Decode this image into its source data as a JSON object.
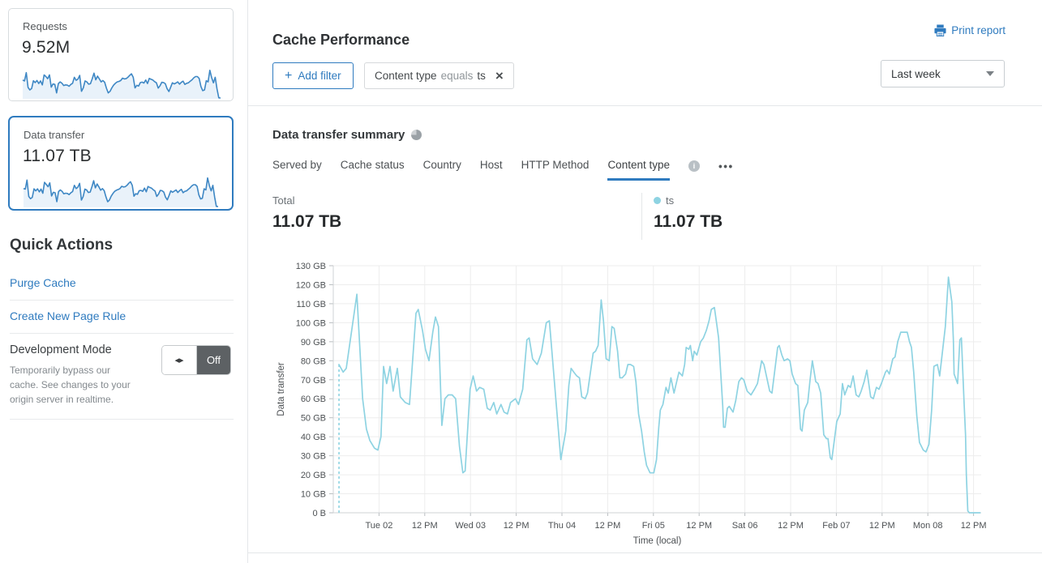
{
  "colors": {
    "link_blue": "#2f7bbf",
    "selected_card_border": "#2f7bbf",
    "tab_underline": "#2f7bbf",
    "sparkline_stroke": "#3e87c4",
    "sparkline_fill": "#e9f2fa",
    "chart_line": "#8ed3e2",
    "toggle_off_bg": "#5d6164"
  },
  "sidebar": {
    "cards": [
      {
        "label": "Requests",
        "value": "9.52M",
        "selected": false,
        "sparkline": [
          78,
          74,
          110,
          46,
          35,
          41,
          75,
          67,
          76,
          63,
          74,
          57,
          100,
          93,
          84,
          100,
          47,
          61,
          59,
          22,
          63,
          70,
          64,
          54,
          57,
          56,
          51,
          59,
          64,
          90,
          77,
          82,
          98,
          29,
          44,
          74,
          70,
          60,
          62,
          83,
          108,
          79,
          95,
          83,
          70,
          76,
          68,
          42,
          22,
          29,
          44,
          56,
          64,
          70,
          72,
          76,
          86,
          83,
          84,
          90,
          98,
          105,
          90,
          44,
          55,
          52,
          67,
          69,
          65,
          78,
          63,
          85,
          81,
          78,
          71,
          66,
          43,
          53,
          68,
          67,
          62,
          40,
          28,
          47,
          66,
          61,
          65,
          70,
          60,
          68,
          73,
          59,
          64,
          66,
          73,
          79,
          88,
          93,
          93,
          85,
          50,
          32,
          35,
          75,
          70,
          120,
          89,
          66,
          90,
          40,
          1,
          0
        ]
      },
      {
        "label": "Data transfer",
        "value": "11.07 TB",
        "selected": true,
        "sparkline": [
          78,
          76,
          115,
          44,
          34,
          40,
          77,
          68,
          77,
          64,
          76,
          58,
          105,
          96,
          86,
          103,
          46,
          62,
          60,
          21,
          65,
          72,
          66,
          55,
          58,
          57,
          52,
          60,
          65,
          92,
          78,
          84,
          101,
          28,
          43,
          76,
          72,
          61,
          63,
          85,
          112,
          81,
          98,
          85,
          71,
          78,
          69,
          43,
          21,
          28,
          45,
          57,
          66,
          71,
          74,
          78,
          88,
          85,
          86,
          92,
          101,
          108,
          92,
          45,
          56,
          53,
          69,
          70,
          66,
          80,
          64,
          87,
          83,
          80,
          73,
          67,
          44,
          54,
          70,
          69,
          63,
          41,
          29,
          48,
          68,
          62,
          67,
          72,
          61,
          69,
          75,
          60,
          66,
          68,
          75,
          81,
          90,
          95,
          95,
          87,
          51,
          33,
          36,
          77,
          72,
          124,
          91,
          68,
          92,
          41,
          1,
          0
        ]
      }
    ],
    "quick_actions": {
      "title": "Quick Actions",
      "links": [
        "Purge Cache",
        "Create New Page Rule"
      ],
      "dev_mode": {
        "title": "Development Mode",
        "description": "Temporarily bypass our cache. See changes to your origin server in realtime.",
        "toggle_icon": "◂▸",
        "toggle_state": "Off"
      }
    }
  },
  "header": {
    "title": "Cache Performance",
    "print_label": "Print report"
  },
  "filters": {
    "add_label": "Add filter",
    "add_plus": "+",
    "chip": {
      "field": "Content type",
      "operator": "equals",
      "value": "ts",
      "close": "×"
    },
    "range_label": "Last week"
  },
  "summary": {
    "title": "Data transfer summary",
    "tabs": [
      {
        "label": "Served by",
        "active": false
      },
      {
        "label": "Cache status",
        "active": false
      },
      {
        "label": "Country",
        "active": false
      },
      {
        "label": "Host",
        "active": false
      },
      {
        "label": "HTTP Method",
        "active": false
      },
      {
        "label": "Content type",
        "active": true,
        "info": true
      }
    ],
    "more_label": "•••",
    "info_glyph": "i",
    "total_label": "Total",
    "total_value": "11.07 TB",
    "series_label": "ts",
    "series_value": "11.07 TB"
  },
  "chart_data": {
    "type": "line",
    "title": "Data transfer summary — ts",
    "xlabel": "Time (local)",
    "ylabel": "Data transfer",
    "grid": true,
    "legend_position": "above-right",
    "y_unit": "GB",
    "y_max_gb": 130,
    "y_tick_labels": [
      "0 B",
      "10 GB",
      "20 GB",
      "30 GB",
      "40 GB",
      "50 GB",
      "60 GB",
      "70 GB",
      "80 GB",
      "90 GB",
      "100 GB",
      "110 GB",
      "120 GB",
      "130 GB"
    ],
    "x_range_hours": [
      0,
      170
    ],
    "x_tick_hours": [
      12,
      24,
      36,
      48,
      60,
      72,
      84,
      96,
      108,
      120,
      132,
      144,
      156,
      168
    ],
    "x_tick_labels": [
      "Tue 02",
      "12 PM",
      "Wed 03",
      "12 PM",
      "Thu 04",
      "12 PM",
      "Fri 05",
      "12 PM",
      "Sat 06",
      "12 PM",
      "Feb 07",
      "12 PM",
      "Mon 08",
      "12 PM"
    ],
    "dashed_start": {
      "t": 1.5,
      "from_gb": 0,
      "to_gb": 78
    },
    "series": [
      {
        "name": "ts",
        "color": "#8ed3e2",
        "points": [
          [
            1.5,
            78
          ],
          [
            2.6,
            74
          ],
          [
            3.4,
            76
          ],
          [
            6.2,
            115
          ],
          [
            7.7,
            60
          ],
          [
            8.7,
            44
          ],
          [
            9.6,
            38
          ],
          [
            10.8,
            34
          ],
          [
            11.7,
            33
          ],
          [
            12.5,
            40
          ],
          [
            13.2,
            77
          ],
          [
            14,
            68
          ],
          [
            14.9,
            77
          ],
          [
            15.7,
            64
          ],
          [
            16.8,
            76
          ],
          [
            17.6,
            61
          ],
          [
            18.9,
            58
          ],
          [
            20,
            57
          ],
          [
            21.7,
            105
          ],
          [
            22.3,
            107
          ],
          [
            23.4,
            96
          ],
          [
            24.2,
            86
          ],
          [
            25.1,
            80
          ],
          [
            26.1,
            95
          ],
          [
            26.8,
            103
          ],
          [
            27.6,
            98
          ],
          [
            28.5,
            46
          ],
          [
            29.3,
            60
          ],
          [
            30.2,
            62
          ],
          [
            31.2,
            62
          ],
          [
            32.1,
            60
          ],
          [
            33.1,
            35
          ],
          [
            34,
            21
          ],
          [
            34.6,
            22
          ],
          [
            35.9,
            65
          ],
          [
            36.7,
            72
          ],
          [
            37.6,
            64
          ],
          [
            38.4,
            66
          ],
          [
            39.5,
            65
          ],
          [
            40.4,
            55
          ],
          [
            41.2,
            54
          ],
          [
            42.1,
            58
          ],
          [
            42.9,
            52
          ],
          [
            44,
            57
          ],
          [
            44.8,
            53
          ],
          [
            45.7,
            52
          ],
          [
            46.5,
            58
          ],
          [
            47.8,
            60
          ],
          [
            48.6,
            57
          ],
          [
            49.7,
            65
          ],
          [
            50.8,
            91
          ],
          [
            51.4,
            92
          ],
          [
            52.3,
            81
          ],
          [
            53.5,
            78
          ],
          [
            54.6,
            84
          ],
          [
            55.9,
            100
          ],
          [
            56.7,
            101
          ],
          [
            59.7,
            28
          ],
          [
            61,
            43
          ],
          [
            61.8,
            67
          ],
          [
            62.4,
            76
          ],
          [
            63.1,
            74
          ],
          [
            63.9,
            72
          ],
          [
            64.6,
            71
          ],
          [
            65.2,
            61
          ],
          [
            66.1,
            60
          ],
          [
            66.7,
            63
          ],
          [
            68.2,
            84
          ],
          [
            68.8,
            85
          ],
          [
            69.5,
            88
          ],
          [
            70.3,
            112
          ],
          [
            70.9,
            101
          ],
          [
            71.6,
            81
          ],
          [
            72.4,
            80
          ],
          [
            73.1,
            98
          ],
          [
            73.7,
            97
          ],
          [
            74.6,
            85
          ],
          [
            75.2,
            71
          ],
          [
            75.8,
            71
          ],
          [
            76.7,
            73
          ],
          [
            77.3,
            78
          ],
          [
            78,
            78
          ],
          [
            78.8,
            77
          ],
          [
            79.4,
            69
          ],
          [
            80.1,
            52
          ],
          [
            80.9,
            43
          ],
          [
            81.6,
            32
          ],
          [
            82.2,
            25
          ],
          [
            83.1,
            21
          ],
          [
            84.1,
            21
          ],
          [
            84.8,
            28
          ],
          [
            85.4,
            45
          ],
          [
            85.8,
            54
          ],
          [
            86.5,
            57
          ],
          [
            87.3,
            66
          ],
          [
            87.9,
            63
          ],
          [
            88.6,
            71
          ],
          [
            89.4,
            63
          ],
          [
            90.1,
            69
          ],
          [
            90.7,
            74
          ],
          [
            91.6,
            72
          ],
          [
            92.2,
            78
          ],
          [
            92.6,
            87
          ],
          [
            93.3,
            86
          ],
          [
            93.7,
            88
          ],
          [
            94.3,
            80
          ],
          [
            94.7,
            85
          ],
          [
            95.4,
            83
          ],
          [
            95.8,
            86
          ],
          [
            96.4,
            90
          ],
          [
            97.1,
            92
          ],
          [
            97.9,
            96
          ],
          [
            98.6,
            101
          ],
          [
            99.2,
            107
          ],
          [
            100,
            108
          ],
          [
            100.7,
            98
          ],
          [
            101.1,
            92
          ],
          [
            102.2,
            56
          ],
          [
            102.4,
            45
          ],
          [
            102.8,
            45
          ],
          [
            103.4,
            55
          ],
          [
            103.9,
            56
          ],
          [
            104.9,
            53
          ],
          [
            105.6,
            59
          ],
          [
            106.4,
            69
          ],
          [
            107.1,
            71
          ],
          [
            107.7,
            70
          ],
          [
            108.6,
            64
          ],
          [
            109.6,
            62
          ],
          [
            110.5,
            65
          ],
          [
            111.3,
            68
          ],
          [
            112.4,
            80
          ],
          [
            113,
            78
          ],
          [
            114.5,
            64
          ],
          [
            115.1,
            63
          ],
          [
            116.6,
            87
          ],
          [
            117,
            88
          ],
          [
            117.7,
            83
          ],
          [
            118.3,
            80
          ],
          [
            119.2,
            81
          ],
          [
            119.8,
            80
          ],
          [
            120.4,
            73
          ],
          [
            121.3,
            68
          ],
          [
            121.9,
            67
          ],
          [
            122.6,
            44
          ],
          [
            123,
            43
          ],
          [
            123.6,
            54
          ],
          [
            124.5,
            58
          ],
          [
            125.1,
            70
          ],
          [
            125.7,
            80
          ],
          [
            126.6,
            69
          ],
          [
            127.2,
            68
          ],
          [
            127.9,
            63
          ],
          [
            128.7,
            41
          ],
          [
            129.4,
            39
          ],
          [
            129.8,
            39
          ],
          [
            130.4,
            29
          ],
          [
            130.8,
            28
          ],
          [
            132.1,
            48
          ],
          [
            133,
            52
          ],
          [
            133.6,
            68
          ],
          [
            134.2,
            62
          ],
          [
            135.1,
            67
          ],
          [
            135.7,
            66
          ],
          [
            136.4,
            72
          ],
          [
            137.2,
            62
          ],
          [
            137.9,
            61
          ],
          [
            138.5,
            64
          ],
          [
            139.3,
            69
          ],
          [
            140,
            75
          ],
          [
            141,
            61
          ],
          [
            141.7,
            60
          ],
          [
            142.5,
            66
          ],
          [
            143.2,
            65
          ],
          [
            143.8,
            68
          ],
          [
            144.9,
            74
          ],
          [
            145.3,
            75
          ],
          [
            145.9,
            73
          ],
          [
            146.8,
            81
          ],
          [
            147.4,
            82
          ],
          [
            148.1,
            90
          ],
          [
            148.9,
            95
          ],
          [
            150.2,
            95
          ],
          [
            150.6,
            95
          ],
          [
            151.2,
            90
          ],
          [
            151.7,
            87
          ],
          [
            152.3,
            74
          ],
          [
            153.1,
            51
          ],
          [
            153.8,
            37
          ],
          [
            154.8,
            33
          ],
          [
            155.5,
            32
          ],
          [
            156.3,
            36
          ],
          [
            157,
            54
          ],
          [
            157.6,
            77
          ],
          [
            158.5,
            78
          ],
          [
            159.1,
            72
          ],
          [
            160.6,
            98
          ],
          [
            161.4,
            124
          ],
          [
            162.3,
            111
          ],
          [
            162.7,
            91
          ],
          [
            162.9,
            73
          ],
          [
            163.8,
            68
          ],
          [
            164.4,
            91
          ],
          [
            164.8,
            92
          ],
          [
            165.5,
            58
          ],
          [
            165.9,
            41
          ],
          [
            166.1,
            20
          ],
          [
            166.5,
            1
          ],
          [
            166.9,
            0
          ],
          [
            169.7,
            0
          ]
        ]
      }
    ]
  }
}
